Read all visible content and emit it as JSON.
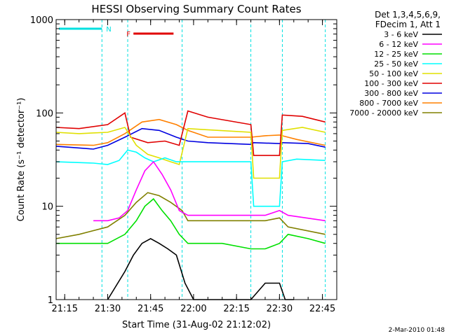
{
  "chart_data": {
    "type": "line",
    "title": "HESSI Observing Summary Count Rates",
    "xlabel": "Start Time (31-Aug-02 21:12:02)",
    "ylabel": "Count Rate (s⁻¹ detector⁻¹)",
    "x_tick_labels": [
      "21:15",
      "21:30",
      "21:45",
      "22:00",
      "22:15",
      "22:30",
      "22:45"
    ],
    "y_tick_labels": [
      "1",
      "10",
      "100",
      "1000"
    ],
    "xlim": [
      "21:12",
      "22:50"
    ],
    "ylim": [
      1,
      1000
    ],
    "yscale": "log",
    "legend_header": [
      "Det 1,3,4,5,6,9,",
      "FDecim 1, Att 1"
    ],
    "legend_position": "right",
    "footer": "2-Mar-2010 01:48",
    "flags": [
      {
        "label": "N",
        "start": "21:13",
        "end": "21:28",
        "color": "#00e0e0"
      },
      {
        "label": "F",
        "start": "21:39",
        "end": "21:53",
        "color": "#e00000"
      }
    ],
    "night_bounds": [
      "21:28",
      "21:37",
      "21:56",
      "22:20",
      "22:31",
      "22:46"
    ],
    "series": [
      {
        "name": "3 - 6 keV",
        "color": "#000000",
        "x": [
          "21:30",
          "21:36",
          "21:39",
          "21:42",
          "21:45",
          "21:48",
          "21:51",
          "21:54",
          "21:57",
          "22:00",
          "22:20",
          "22:25",
          "22:30",
          "22:32",
          "22:35"
        ],
        "values": [
          1,
          2,
          3,
          4,
          4.5,
          4,
          3.5,
          3,
          1.5,
          1,
          1,
          1.5,
          1.5,
          1,
          1
        ]
      },
      {
        "name": "6 - 12 keV",
        "color": "#ff00ff",
        "x": [
          "21:25",
          "21:30",
          "21:34",
          "21:37",
          "21:40",
          "21:43",
          "21:46",
          "21:49",
          "21:52",
          "21:55",
          "21:58",
          "22:10",
          "22:20",
          "22:25",
          "22:30",
          "22:33",
          "22:46"
        ],
        "values": [
          7,
          7,
          7.5,
          9,
          15,
          24,
          30,
          22,
          15,
          9,
          8,
          8,
          8,
          8,
          9,
          8,
          7
        ]
      },
      {
        "name": "12 - 25 keV",
        "color": "#00e000",
        "x": [
          "21:12",
          "21:20",
          "21:30",
          "21:36",
          "21:40",
          "21:43",
          "21:46",
          "21:49",
          "21:52",
          "21:55",
          "21:58",
          "22:10",
          "22:20",
          "22:25",
          "22:30",
          "22:33",
          "22:40",
          "22:46"
        ],
        "values": [
          4,
          4,
          4,
          5,
          7,
          10,
          12,
          9,
          7,
          5,
          4,
          4,
          3.5,
          3.5,
          4,
          5,
          4.5,
          4
        ]
      },
      {
        "name": "25 - 50 keV",
        "color": "#00ffff",
        "x": [
          "21:12",
          "21:25",
          "21:30",
          "21:34",
          "21:37",
          "21:40",
          "21:43",
          "21:46",
          "21:50",
          "21:54",
          "21:57",
          "22:10",
          "22:20",
          "22:21",
          "22:30",
          "22:31",
          "22:36",
          "22:46"
        ],
        "values": [
          30,
          29,
          28,
          31,
          40,
          38,
          33,
          30,
          33,
          30,
          30,
          30,
          30,
          10,
          10,
          30,
          32,
          31
        ]
      },
      {
        "name": "50 - 100 keV",
        "color": "#e0e000",
        "x": [
          "21:12",
          "21:20",
          "21:30",
          "21:36",
          "21:40",
          "21:44",
          "21:48",
          "21:52",
          "21:55",
          "21:58",
          "22:05",
          "22:20",
          "22:21",
          "22:30",
          "22:31",
          "22:38",
          "22:46"
        ],
        "values": [
          62,
          60,
          62,
          70,
          45,
          36,
          33,
          30,
          28,
          68,
          66,
          62,
          20,
          20,
          65,
          70,
          62
        ]
      },
      {
        "name": "100 - 300 keV",
        "color": "#e00000",
        "x": [
          "21:12",
          "21:20",
          "21:30",
          "21:36",
          "21:38",
          "21:44",
          "21:50",
          "21:55",
          "21:58",
          "22:05",
          "22:20",
          "22:21",
          "22:30",
          "22:31",
          "22:38",
          "22:46"
        ],
        "values": [
          70,
          68,
          75,
          100,
          55,
          48,
          50,
          45,
          105,
          90,
          75,
          35,
          35,
          95,
          92,
          80
        ]
      },
      {
        "name": "300 - 800 keV",
        "color": "#0000e0",
        "x": [
          "21:12",
          "21:25",
          "21:30",
          "21:36",
          "21:42",
          "21:48",
          "21:54",
          "21:58",
          "22:05",
          "22:20",
          "22:21",
          "22:30",
          "22:31",
          "22:40",
          "22:46"
        ],
        "values": [
          44,
          41,
          45,
          55,
          68,
          65,
          55,
          50,
          48,
          46,
          48,
          47,
          48,
          47,
          43
        ]
      },
      {
        "name": "800 - 7000 keV",
        "color": "#ff8000",
        "x": [
          "21:12",
          "21:25",
          "21:30",
          "21:36",
          "21:42",
          "21:48",
          "21:54",
          "21:58",
          "22:05",
          "22:20",
          "22:25",
          "22:30",
          "22:36",
          "22:46"
        ],
        "values": [
          46,
          45,
          48,
          60,
          80,
          85,
          75,
          65,
          55,
          55,
          57,
          58,
          52,
          45
        ]
      },
      {
        "name": "7000 - 20000 keV",
        "color": "#808000",
        "x": [
          "21:12",
          "21:20",
          "21:30",
          "21:36",
          "21:40",
          "21:44",
          "21:48",
          "21:52",
          "21:56",
          "21:58",
          "22:10",
          "22:20",
          "22:25",
          "22:30",
          "22:33",
          "22:46"
        ],
        "values": [
          4.5,
          5,
          6,
          8,
          11,
          14,
          13,
          11,
          9,
          7,
          7,
          7,
          7,
          7.5,
          6,
          5
        ]
      }
    ]
  }
}
